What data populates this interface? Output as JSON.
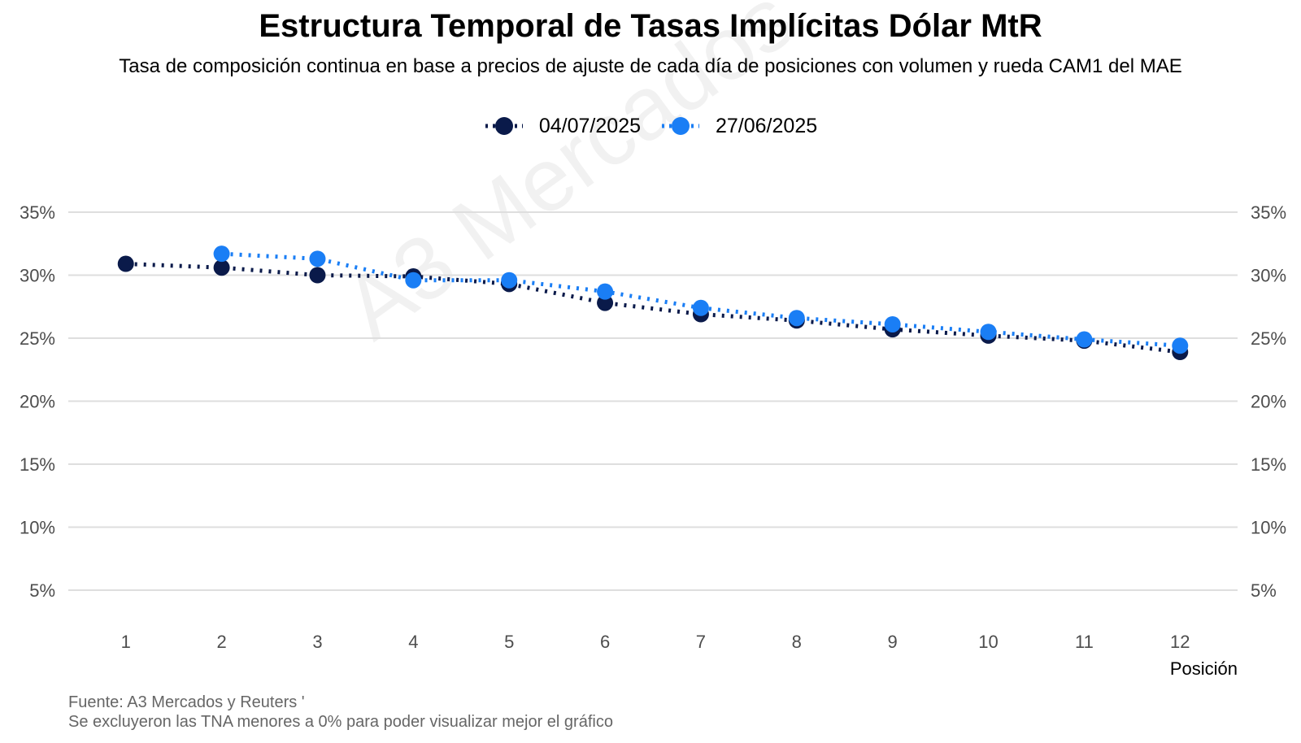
{
  "chart_data": {
    "type": "line",
    "title": "Estructura Temporal de Tasas Implícitas Dólar MtR",
    "subtitle": "Tasa de composición continua en base a precios de ajuste de cada día de posiciones con volumen y rueda CAM1 del MAE",
    "xlabel": "Posición",
    "ylabel": "",
    "x": [
      1,
      2,
      3,
      4,
      5,
      6,
      7,
      8,
      9,
      10,
      11,
      12
    ],
    "ylim": [
      3,
      37
    ],
    "yticks": [
      5,
      10,
      15,
      20,
      25,
      30,
      35
    ],
    "ytick_labels": [
      "5%",
      "10%",
      "15%",
      "20%",
      "25%",
      "30%",
      "35%"
    ],
    "secondary_y_axis": true,
    "grid": "horizontal",
    "legend_position": "top",
    "line_style": "dotted",
    "series": [
      {
        "name": "04/07/2025",
        "color": "#0a1a4a",
        "values": [
          30.9,
          30.6,
          30.0,
          29.9,
          29.3,
          27.8,
          26.9,
          26.4,
          25.7,
          25.2,
          24.8,
          23.9
        ]
      },
      {
        "name": "27/06/2025",
        "color": "#1a7ef5",
        "values": [
          null,
          31.7,
          31.3,
          29.6,
          29.6,
          28.7,
          27.4,
          26.6,
          26.1,
          25.5,
          24.9,
          24.4
        ]
      }
    ],
    "source": "Fuente: A3 Mercados y Reuters '",
    "note": "Se excluyeron las TNA menores a 0% para poder visualizar mejor el gráfico",
    "watermark": "A3 Mercados"
  }
}
